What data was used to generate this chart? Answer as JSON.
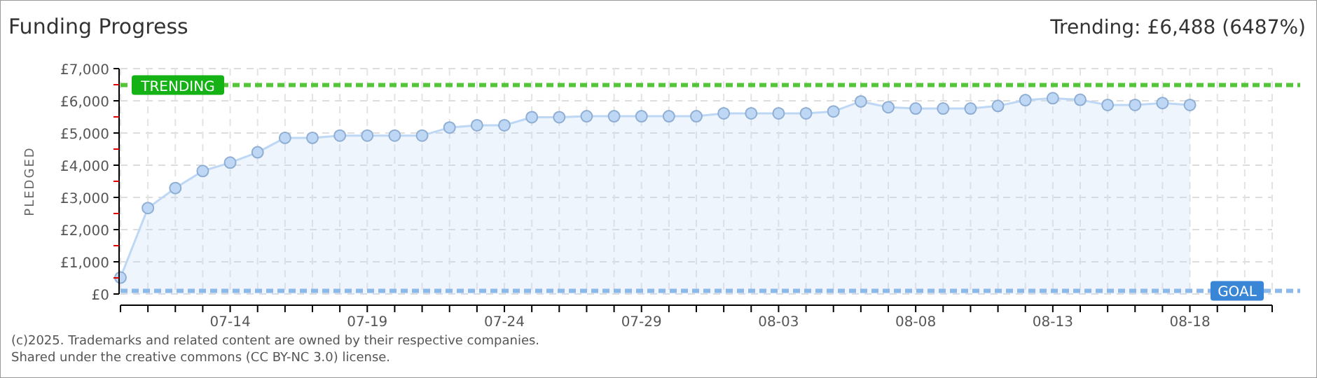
{
  "chart_data": {
    "type": "area",
    "title": "Funding Progress",
    "ylabel": "PLEDGED",
    "annotations": [
      "Trending: £6,488 (6487%)",
      "(c)2025. Trademarks and related content are owned by their respective companies.",
      "Shared under the creative commons (CC BY-NC 3.0) license."
    ],
    "x": [
      "--07-10",
      "--07-11",
      "--07-12",
      "--07-13",
      "--07-14",
      "--07-15",
      "--07-16",
      "--07-17",
      "--07-18",
      "--07-19",
      "--07-20",
      "--07-21",
      "--07-22",
      "--07-23",
      "--07-24",
      "--07-25",
      "--07-26",
      "--07-27",
      "--07-28",
      "--07-29",
      "--07-30",
      "--07-31",
      "--08-01",
      "--08-02",
      "--08-03",
      "--08-04",
      "--08-05",
      "--08-06",
      "--08-07",
      "--08-08",
      "--08-09",
      "--08-10",
      "--08-11",
      "--08-12",
      "--08-13",
      "--08-14",
      "--08-15",
      "--08-16",
      "--08-17",
      "--08-18"
    ],
    "series": [
      {
        "color": "#bdd7f5",
        "values": [
          510,
          2670,
          3290,
          3820,
          4080,
          4400,
          4850,
          4850,
          4920,
          4920,
          4920,
          4920,
          5170,
          5240,
          5240,
          5490,
          5490,
          5520,
          5520,
          5520,
          5520,
          5520,
          5610,
          5610,
          5610,
          5610,
          5670,
          5980,
          5800,
          5760,
          5760,
          5760,
          5840,
          6020,
          6080,
          6030,
          5870,
          5870,
          5930,
          5870
        ]
      }
    ],
    "xlim": [
      "--07-10",
      "--08-21"
    ],
    "xticks": [
      {
        "value": "--07-10",
        "label": null
      },
      {
        "value": "--07-11",
        "label": null
      },
      {
        "value": "--07-12",
        "label": null
      },
      {
        "value": "--07-13",
        "label": null
      },
      {
        "value": "--07-14",
        "label": "07-14"
      },
      {
        "value": "--07-15",
        "label": null
      },
      {
        "value": "--07-16",
        "label": null
      },
      {
        "value": "--07-17",
        "label": null
      },
      {
        "value": "--07-18",
        "label": null
      },
      {
        "value": "--07-19",
        "label": "07-19"
      },
      {
        "value": "--07-20",
        "label": null
      },
      {
        "value": "--07-21",
        "label": null
      },
      {
        "value": "--07-22",
        "label": null
      },
      {
        "value": "--07-23",
        "label": null
      },
      {
        "value": "--07-24",
        "label": "07-24"
      },
      {
        "value": "--07-25",
        "label": null
      },
      {
        "value": "--07-26",
        "label": null
      },
      {
        "value": "--07-27",
        "label": null
      },
      {
        "value": "--07-28",
        "label": null
      },
      {
        "value": "--07-29",
        "label": "07-29"
      },
      {
        "value": "--07-30",
        "label": null
      },
      {
        "value": "--07-31",
        "label": null
      },
      {
        "value": "--08-01",
        "label": null
      },
      {
        "value": "--08-02",
        "label": null
      },
      {
        "value": "--08-03",
        "label": "08-03"
      },
      {
        "value": "--08-04",
        "label": null
      },
      {
        "value": "--08-05",
        "label": null
      },
      {
        "value": "--08-06",
        "label": null
      },
      {
        "value": "--08-07",
        "label": null
      },
      {
        "value": "--08-08",
        "label": "08-08"
      },
      {
        "value": "--08-09",
        "label": null
      },
      {
        "value": "--08-10",
        "label": null
      },
      {
        "value": "--08-11",
        "label": null
      },
      {
        "value": "--08-12",
        "label": null
      },
      {
        "value": "--08-13",
        "label": "08-13"
      },
      {
        "value": "--08-14",
        "label": null
      },
      {
        "value": "--08-15",
        "label": null
      },
      {
        "value": "--08-16",
        "label": null
      },
      {
        "value": "--08-17",
        "label": null
      },
      {
        "value": "--08-18",
        "label": "08-18"
      },
      {
        "value": "--08-19",
        "label": null
      },
      {
        "value": "--08-20",
        "label": null
      },
      {
        "value": "--08-21",
        "label": null
      }
    ],
    "ylim": [
      0,
      7000
    ],
    "yticks": [
      {
        "value": 0,
        "label": "£0"
      },
      {
        "value": 500,
        "label": null
      },
      {
        "value": 1000,
        "label": "£1,000"
      },
      {
        "value": 1500,
        "label": null
      },
      {
        "value": 2000,
        "label": "£2,000"
      },
      {
        "value": 2500,
        "label": null
      },
      {
        "value": 3000,
        "label": "£3,000"
      },
      {
        "value": 3500,
        "label": null
      },
      {
        "value": 4000,
        "label": "£4,000"
      },
      {
        "value": 4500,
        "label": null
      },
      {
        "value": 5000,
        "label": "£5,000"
      },
      {
        "value": 5500,
        "label": null
      },
      {
        "value": 6000,
        "label": "£6,000"
      },
      {
        "value": 6500,
        "label": null
      },
      {
        "value": 7000,
        "label": "£7,000"
      }
    ],
    "ref_lines": [
      {
        "axis": "y",
        "value": 6488,
        "label": "TRENDING",
        "color": "#55c43a",
        "line_style": "dashed"
      },
      {
        "axis": "y",
        "value": 100,
        "label": "GOAL",
        "color": "#8fb8ea",
        "line_style": "dashed"
      }
    ],
    "grid": true,
    "marker": "circle"
  }
}
